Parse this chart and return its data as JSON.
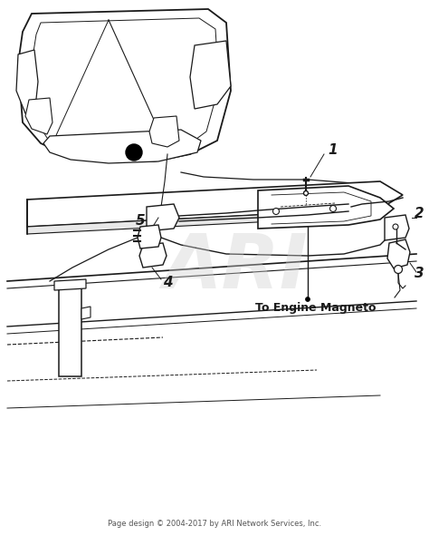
{
  "bg_color": "#ffffff",
  "line_color": "#1a1a1a",
  "watermark_text": "ARI",
  "watermark_color": "#d0d0d0",
  "footer_text": "Page design © 2004-2017 by ARI Network Services, Inc.",
  "annotation_text": "To Engine Magneto",
  "fig_width": 4.74,
  "fig_height": 5.91,
  "dpi": 100
}
